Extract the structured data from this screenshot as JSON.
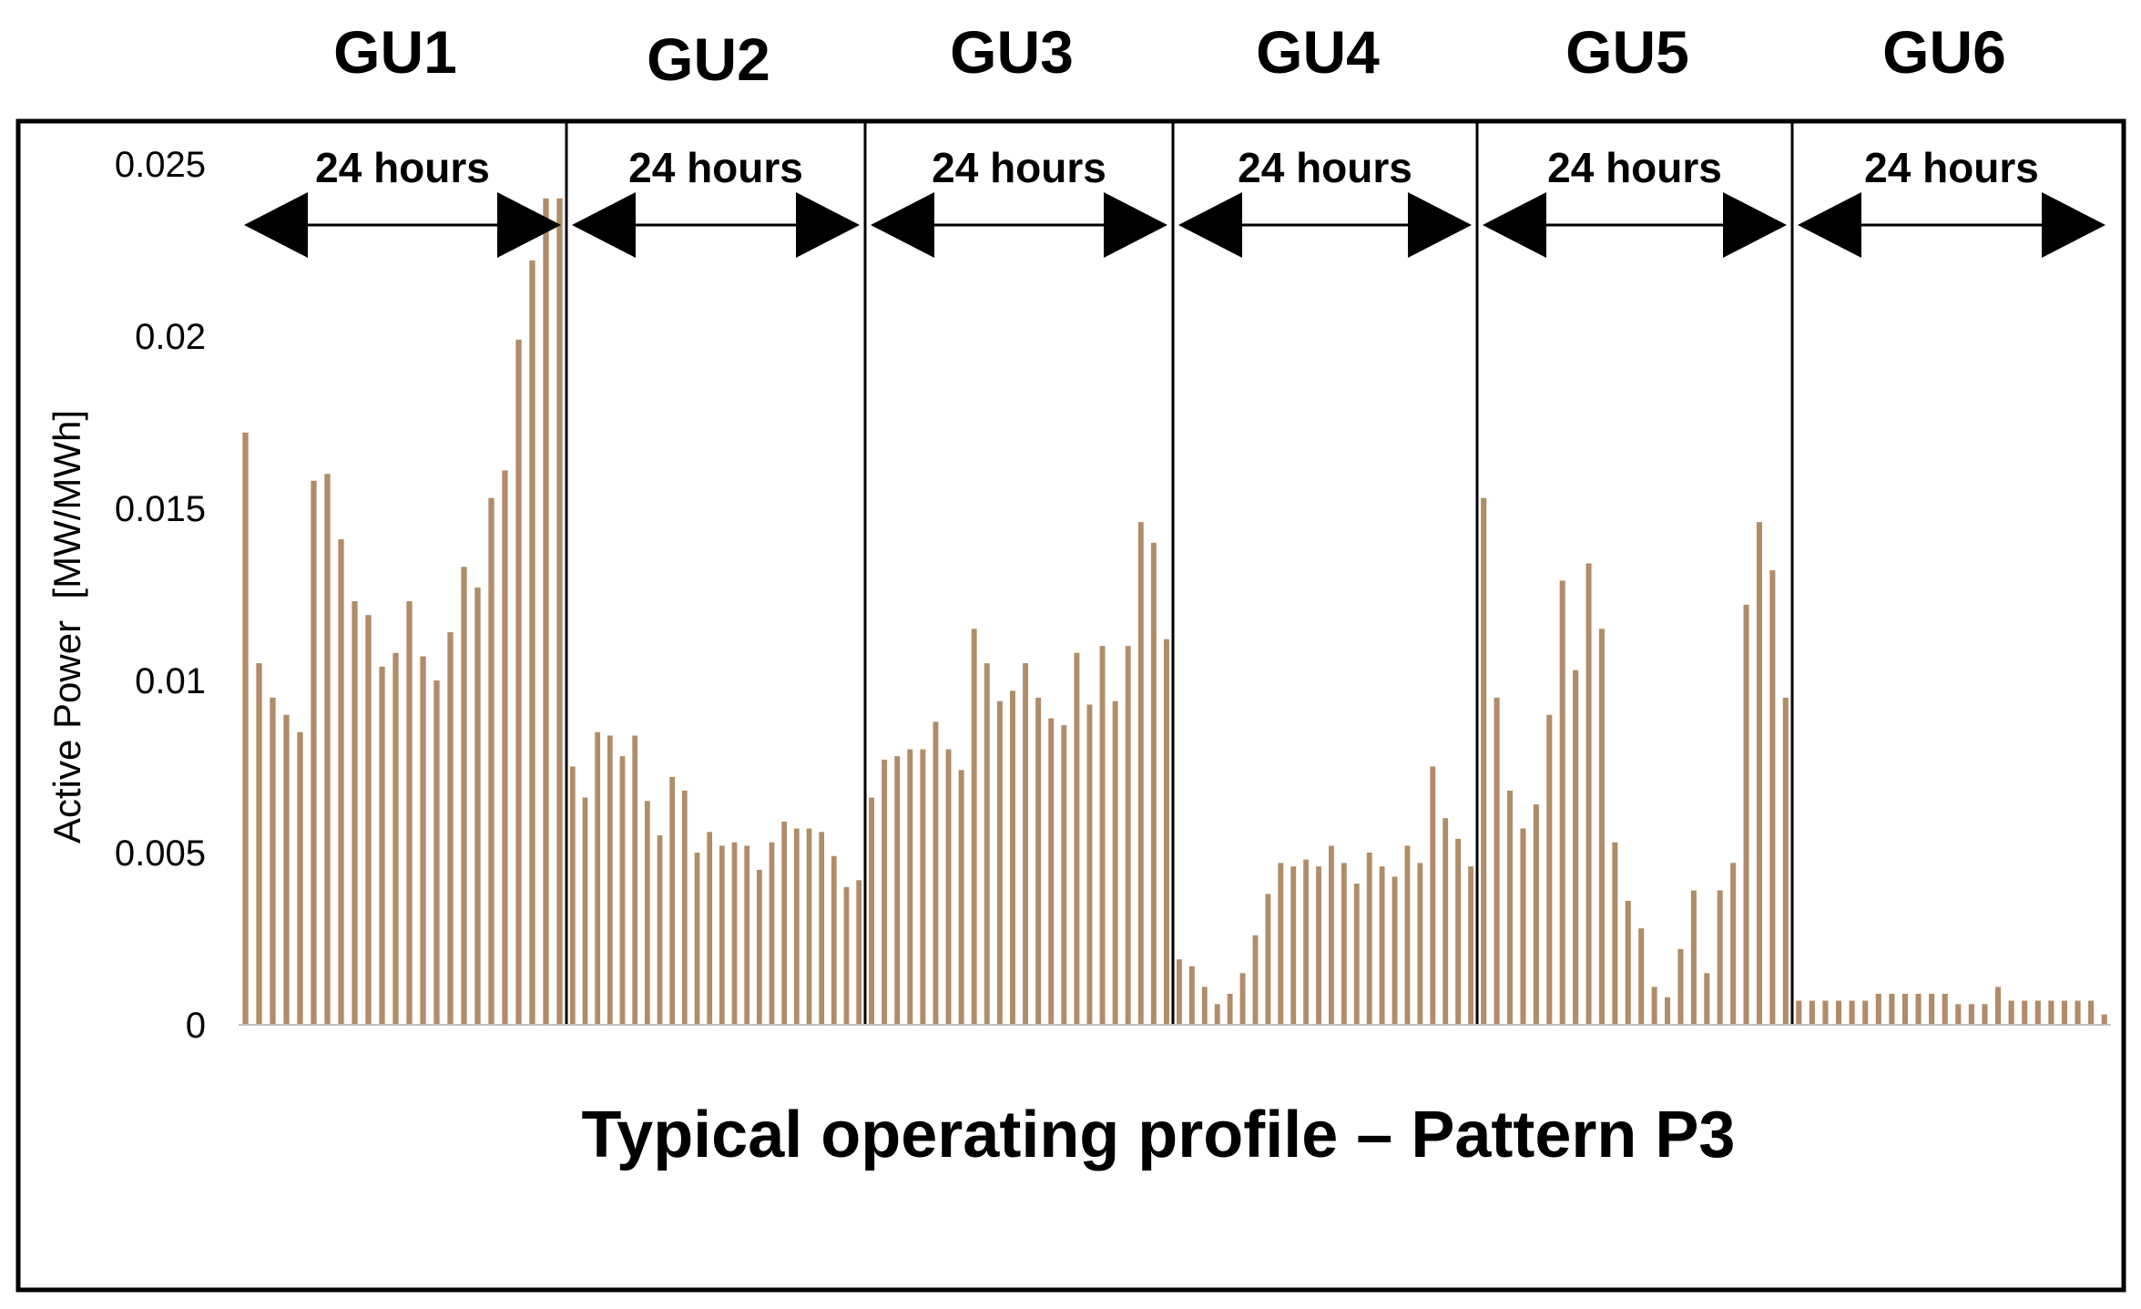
{
  "chart_data": {
    "type": "bar",
    "title": "Typical operating profile – Pattern P3",
    "ylabel": "Active Power  [MW/MWh]",
    "xlabel": "",
    "ylim": [
      0,
      0.025
    ],
    "yticks": [
      0,
      0.005,
      0.01,
      0.015,
      0.02,
      0.025
    ],
    "ytick_labels": [
      "0",
      "0.005",
      "0.01",
      "0.015",
      "0.02",
      "0.025"
    ],
    "grid": false,
    "bar_color": "#b08c68",
    "segment_span_label": "24 hours",
    "segments": [
      {
        "name": "GU1",
        "values": [
          0.0172,
          0.0105,
          0.0095,
          0.009,
          0.0085,
          0.0158,
          0.016,
          0.0141,
          0.0123,
          0.0119,
          0.0104,
          0.0108,
          0.0123,
          0.0107,
          0.01,
          0.0114,
          0.0133,
          0.0127,
          0.0153,
          0.0161,
          0.0199,
          0.0222,
          0.024,
          0.024
        ]
      },
      {
        "name": "GU2",
        "values": [
          0.0075,
          0.0066,
          0.0085,
          0.0084,
          0.0078,
          0.0084,
          0.0065,
          0.0055,
          0.0072,
          0.0068,
          0.005,
          0.0056,
          0.0052,
          0.0053,
          0.0052,
          0.0045,
          0.0053,
          0.0059,
          0.0057,
          0.0057,
          0.0056,
          0.0049,
          0.004,
          0.0042
        ]
      },
      {
        "name": "GU3",
        "values": [
          0.0066,
          0.0077,
          0.0078,
          0.008,
          0.008,
          0.0088,
          0.008,
          0.0074,
          0.0115,
          0.0105,
          0.0094,
          0.0097,
          0.0105,
          0.0095,
          0.0089,
          0.0087,
          0.0108,
          0.0093,
          0.011,
          0.0094,
          0.011,
          0.0146,
          0.014,
          0.0112
        ]
      },
      {
        "name": "GU4",
        "values": [
          0.0019,
          0.0017,
          0.0011,
          0.0006,
          0.0009,
          0.0015,
          0.0026,
          0.0038,
          0.0047,
          0.0046,
          0.0048,
          0.0046,
          0.0052,
          0.0047,
          0.0041,
          0.005,
          0.0046,
          0.0043,
          0.0052,
          0.0047,
          0.0075,
          0.006,
          0.0054,
          0.0046
        ]
      },
      {
        "name": "GU5",
        "values": [
          0.0153,
          0.0095,
          0.0068,
          0.0057,
          0.0064,
          0.009,
          0.0129,
          0.0103,
          0.0134,
          0.0115,
          0.0053,
          0.0036,
          0.0028,
          0.0011,
          0.0008,
          0.0022,
          0.0039,
          0.0015,
          0.0039,
          0.0047,
          0.0122,
          0.0146,
          0.0132,
          0.0095
        ]
      },
      {
        "name": "GU6",
        "values": [
          0.0007,
          0.0007,
          0.0007,
          0.0007,
          0.0007,
          0.0007,
          0.0009,
          0.0009,
          0.0009,
          0.0009,
          0.0009,
          0.0009,
          0.0006,
          0.0006,
          0.0006,
          0.0011,
          0.0007,
          0.0007,
          0.0007,
          0.0007,
          0.0007,
          0.0007,
          0.0007,
          0.0003
        ]
      }
    ]
  }
}
